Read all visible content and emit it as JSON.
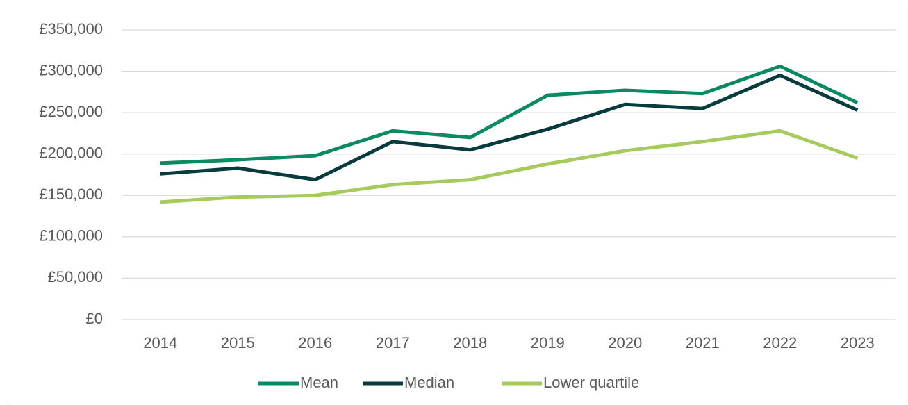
{
  "chart_data": {
    "type": "line",
    "categories": [
      "2014",
      "2015",
      "2016",
      "2017",
      "2018",
      "2019",
      "2020",
      "2021",
      "2022",
      "2023"
    ],
    "series": [
      {
        "name": "Mean",
        "color": "#0a8a62",
        "values": [
          189000,
          193000,
          198000,
          228000,
          220000,
          271000,
          277000,
          273000,
          306000,
          262000
        ]
      },
      {
        "name": "Median",
        "color": "#083b3e",
        "values": [
          176000,
          183000,
          169000,
          215000,
          205000,
          230000,
          260000,
          255000,
          295000,
          253000
        ]
      },
      {
        "name": "Lower quartile",
        "color": "#a6ca5c",
        "values": [
          142000,
          148000,
          150000,
          163000,
          169000,
          188000,
          204000,
          215000,
          228000,
          195000
        ]
      }
    ],
    "ylim": [
      0,
      350000
    ],
    "yticks": [
      {
        "value": 0,
        "label": "£0"
      },
      {
        "value": 50000,
        "label": "£50,000"
      },
      {
        "value": 100000,
        "label": "£100,000"
      },
      {
        "value": 150000,
        "label": "£150,000"
      },
      {
        "value": 200000,
        "label": "£200,000"
      },
      {
        "value": 250000,
        "label": "£250,000"
      },
      {
        "value": 300000,
        "label": "£300,000"
      },
      {
        "value": 350000,
        "label": "£350,000"
      }
    ],
    "grid": true,
    "legend": "bottom"
  }
}
